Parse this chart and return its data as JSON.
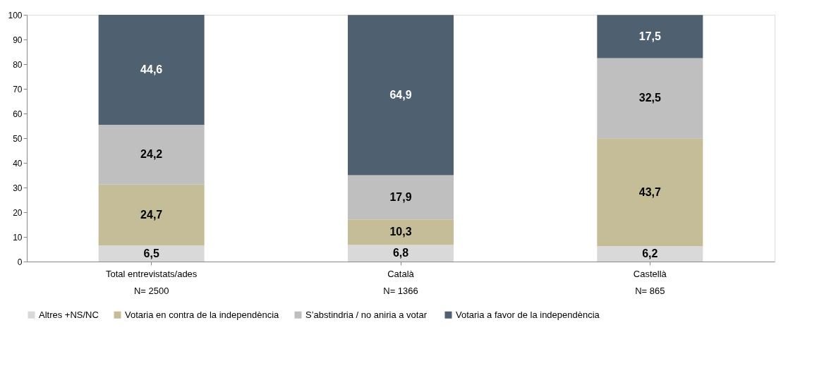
{
  "chart_data": {
    "type": "bar",
    "stacked": true,
    "categories": [
      "Total entrevistats/ades",
      "Català",
      "Castellà"
    ],
    "series": [
      {
        "name": "Altres +NS/NC",
        "color": "#d9d9d9",
        "values": [
          6.5,
          6.8,
          6.2
        ],
        "value_labels": [
          "6,5",
          "6,8",
          "6,2"
        ]
      },
      {
        "name": "Votaria en contra de la independència",
        "color": "#c4bd97",
        "values": [
          24.7,
          10.3,
          43.7
        ],
        "value_labels": [
          "24,7",
          "10,3",
          "43,7"
        ]
      },
      {
        "name": "S’abstindria / no aniria  a votar",
        "color": "#bfbfbf",
        "values": [
          24.2,
          17.9,
          32.5
        ],
        "value_labels": [
          "24,2",
          "17,9",
          "32,5"
        ]
      },
      {
        "name": "Votaria a favor de la independència",
        "color": "#4f6070",
        "values": [
          44.6,
          64.9,
          17.5
        ],
        "value_labels": [
          "44,6",
          "64,9",
          "17,5"
        ]
      }
    ],
    "ylim": [
      0,
      100
    ],
    "yticks": [
      0,
      10,
      20,
      30,
      40,
      50,
      60,
      70,
      80,
      90,
      100
    ],
    "grid": false,
    "legend": "bottom",
    "annotations": [
      "N= 2500",
      "N= 1366",
      "N= 865"
    ]
  }
}
